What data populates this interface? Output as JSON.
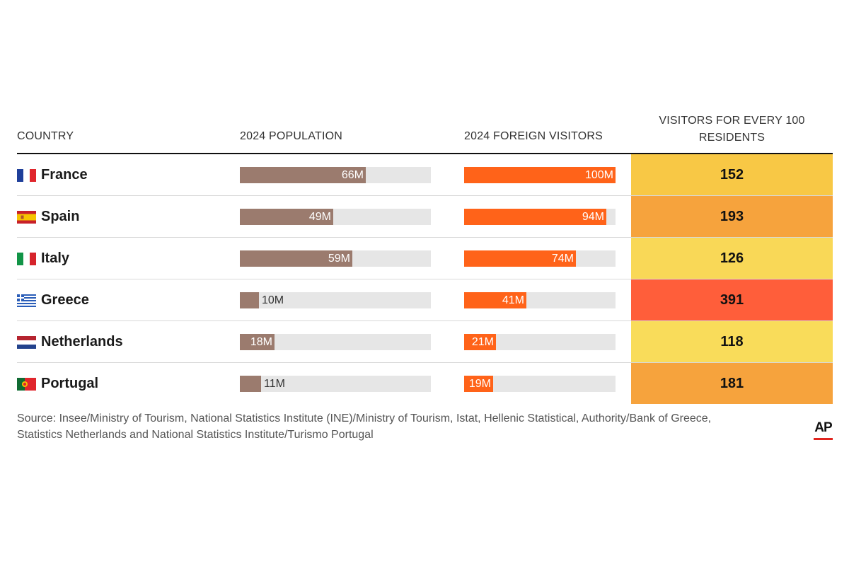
{
  "headers": {
    "country": "COUNTRY",
    "population": "2024 POPULATION",
    "visitors": "2024 FOREIGN VISITORS",
    "ratio_line1": "VISITORS FOR EVERY 100",
    "ratio_line2": "RESIDENTS"
  },
  "chart_data": {
    "type": "table",
    "title": "",
    "columns": [
      "COUNTRY",
      "2024 POPULATION",
      "2024 FOREIGN VISITORS",
      "VISITORS FOR EVERY 100 RESIDENTS"
    ],
    "population_max": 100,
    "visitors_max": 100,
    "rows": [
      {
        "country": "France",
        "flag": "france-flag-icon",
        "population": 66,
        "population_label": "66M",
        "visitors": 100,
        "visitors_label": "100M",
        "ratio": "152",
        "ratio_color": "#f8c845"
      },
      {
        "country": "Spain",
        "flag": "spain-flag-icon",
        "population": 49,
        "population_label": "49M",
        "visitors": 94,
        "visitors_label": "94M",
        "ratio": "193",
        "ratio_color": "#f6a33d"
      },
      {
        "country": "Italy",
        "flag": "italy-flag-icon",
        "population": 59,
        "population_label": "59M",
        "visitors": 74,
        "visitors_label": "74M",
        "ratio": "126",
        "ratio_color": "#f9d857"
      },
      {
        "country": "Greece",
        "flag": "greece-flag-icon",
        "population": 10,
        "population_label": "10M",
        "visitors": 41,
        "visitors_label": "41M",
        "ratio": "391",
        "ratio_color": "#ff5e3a"
      },
      {
        "country": "Netherlands",
        "flag": "netherlands-flag-icon",
        "population": 18,
        "population_label": "18M",
        "visitors": 21,
        "visitors_label": "21M",
        "ratio": "118",
        "ratio_color": "#f9dc5a"
      },
      {
        "country": "Portugal",
        "flag": "portugal-flag-icon",
        "population": 11,
        "population_label": "11M",
        "visitors": 19,
        "visitors_label": "19M",
        "ratio": "181",
        "ratio_color": "#f6a33d"
      }
    ]
  },
  "colors": {
    "population_bar": "#9b7b6e",
    "visitors_bar": "#ff6319",
    "track": "#e6e6e6"
  },
  "source": {
    "line1": "Source: Insee/Ministry of Tourism, National Statistics Institute (INE)/Ministry of Tourism, Istat, Hellenic Statistical, Authority/Bank of Greece,",
    "line2": "Statistics Netherlands and National Statistics Institute/Turismo Portugal"
  },
  "logo": {
    "text": "AP"
  }
}
